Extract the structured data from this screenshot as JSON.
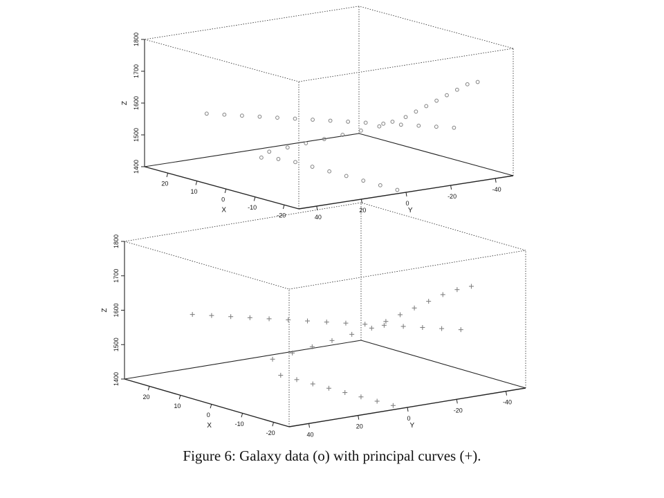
{
  "caption": "Figure 6: Galaxy data (o) with principal curves (+).",
  "chart_data": [
    {
      "type": "scatter3d",
      "marker": "o",
      "marker_color": "#808080",
      "axes": {
        "x": {
          "label": "X",
          "ticks": [
            "20",
            "10",
            "0",
            "-10",
            "-20"
          ],
          "lim": [
            -25,
            28
          ]
        },
        "y": {
          "label": "Y",
          "ticks": [
            "40",
            "20",
            "0",
            "-20",
            "-40"
          ],
          "lim": [
            -48,
            48
          ]
        },
        "z": {
          "label": "Z",
          "ticks": [
            "1400",
            "1500",
            "1600",
            "1700",
            "1800"
          ],
          "lim": [
            1400,
            1800
          ]
        }
      },
      "points": [
        {
          "x": -22,
          "y": 0,
          "z": 1400
        },
        {
          "x": -20,
          "y": 5,
          "z": 1415
        },
        {
          "x": -18,
          "y": 10,
          "z": 1430
        },
        {
          "x": -16,
          "y": 15,
          "z": 1445
        },
        {
          "x": -14,
          "y": 20,
          "z": 1460
        },
        {
          "x": -12,
          "y": 25,
          "z": 1475
        },
        {
          "x": -10,
          "y": 30,
          "z": 1490
        },
        {
          "x": -8,
          "y": 35,
          "z": 1500
        },
        {
          "x": -6,
          "y": 40,
          "z": 1505
        },
        {
          "x": 22,
          "y": 0,
          "z": 1410
        },
        {
          "x": 18,
          "y": -3,
          "z": 1430
        },
        {
          "x": 14,
          "y": -6,
          "z": 1450
        },
        {
          "x": 10,
          "y": -9,
          "z": 1470
        },
        {
          "x": 6,
          "y": -12,
          "z": 1490
        },
        {
          "x": 2,
          "y": -15,
          "z": 1510
        },
        {
          "x": -2,
          "y": -18,
          "z": 1530
        },
        {
          "x": -5,
          "y": -20,
          "z": 1550
        },
        {
          "x": -8,
          "y": -22,
          "z": 1570
        },
        {
          "x": -10,
          "y": -24,
          "z": 1590
        },
        {
          "x": -12,
          "y": -26,
          "z": 1610
        },
        {
          "x": -14,
          "y": -28,
          "z": 1630
        },
        {
          "x": -16,
          "y": -30,
          "z": 1650
        },
        {
          "x": -18,
          "y": -32,
          "z": 1670
        },
        {
          "x": -20,
          "y": -34,
          "z": 1690
        },
        {
          "x": -22,
          "y": -36,
          "z": 1700
        },
        {
          "x": 22,
          "y": 28,
          "z": 1560
        },
        {
          "x": 19,
          "y": 24,
          "z": 1560
        },
        {
          "x": 16,
          "y": 20,
          "z": 1560
        },
        {
          "x": 13,
          "y": 16,
          "z": 1560
        },
        {
          "x": 10,
          "y": 12,
          "z": 1560
        },
        {
          "x": 7,
          "y": 8,
          "z": 1560
        },
        {
          "x": 4,
          "y": 4,
          "z": 1560
        },
        {
          "x": 1,
          "y": 0,
          "z": 1560
        },
        {
          "x": -2,
          "y": -4,
          "z": 1560
        },
        {
          "x": -5,
          "y": -8,
          "z": 1560
        },
        {
          "x": -8,
          "y": -12,
          "z": 1560
        },
        {
          "x": -11,
          "y": -16,
          "z": 1560
        },
        {
          "x": -14,
          "y": -20,
          "z": 1560
        },
        {
          "x": -17,
          "y": -24,
          "z": 1560
        },
        {
          "x": -20,
          "y": -28,
          "z": 1560
        }
      ]
    },
    {
      "type": "scatter3d",
      "marker": "+",
      "marker_color": "#808080",
      "axes": {
        "x": {
          "label": "X",
          "ticks": [
            "20",
            "10",
            "0",
            "-10",
            "-20"
          ],
          "lim": [
            -25,
            28
          ]
        },
        "y": {
          "label": "Y",
          "ticks": [
            "40",
            "20",
            "0",
            "-20",
            "-40"
          ],
          "lim": [
            -48,
            48
          ]
        },
        "z": {
          "label": "Z",
          "ticks": [
            "1400",
            "1500",
            "1600",
            "1700",
            "1800"
          ],
          "lim": [
            1400,
            1800
          ]
        }
      },
      "points": [
        {
          "x": -22,
          "y": 2,
          "z": 1400
        },
        {
          "x": -20,
          "y": 6,
          "z": 1412
        },
        {
          "x": -18,
          "y": 10,
          "z": 1424
        },
        {
          "x": -16,
          "y": 14,
          "z": 1436
        },
        {
          "x": -14,
          "y": 18,
          "z": 1448
        },
        {
          "x": -12,
          "y": 22,
          "z": 1460
        },
        {
          "x": -10,
          "y": 26,
          "z": 1472
        },
        {
          "x": -8,
          "y": 30,
          "z": 1484
        },
        {
          "x": 20,
          "y": -2,
          "z": 1420
        },
        {
          "x": 16,
          "y": -5,
          "z": 1445
        },
        {
          "x": 12,
          "y": -8,
          "z": 1470
        },
        {
          "x": 8,
          "y": -11,
          "z": 1495
        },
        {
          "x": 4,
          "y": -14,
          "z": 1520
        },
        {
          "x": 0,
          "y": -17,
          "z": 1545
        },
        {
          "x": -3,
          "y": -19,
          "z": 1570
        },
        {
          "x": -6,
          "y": -21,
          "z": 1595
        },
        {
          "x": -9,
          "y": -23,
          "z": 1620
        },
        {
          "x": -12,
          "y": -25,
          "z": 1645
        },
        {
          "x": -15,
          "y": -27,
          "z": 1670
        },
        {
          "x": -18,
          "y": -29,
          "z": 1690
        },
        {
          "x": -21,
          "y": -31,
          "z": 1705
        },
        {
          "x": 22,
          "y": 28,
          "z": 1580
        },
        {
          "x": 19,
          "y": 24,
          "z": 1580
        },
        {
          "x": 16,
          "y": 20,
          "z": 1580
        },
        {
          "x": 13,
          "y": 16,
          "z": 1580
        },
        {
          "x": 10,
          "y": 12,
          "z": 1580
        },
        {
          "x": 7,
          "y": 8,
          "z": 1580
        },
        {
          "x": 4,
          "y": 4,
          "z": 1580
        },
        {
          "x": 1,
          "y": 0,
          "z": 1580
        },
        {
          "x": -2,
          "y": -4,
          "z": 1580
        },
        {
          "x": -5,
          "y": -8,
          "z": 1580
        },
        {
          "x": -8,
          "y": -12,
          "z": 1580
        },
        {
          "x": -11,
          "y": -16,
          "z": 1580
        },
        {
          "x": -14,
          "y": -20,
          "z": 1580
        },
        {
          "x": -17,
          "y": -24,
          "z": 1580
        },
        {
          "x": -20,
          "y": -28,
          "z": 1580
        }
      ]
    }
  ]
}
